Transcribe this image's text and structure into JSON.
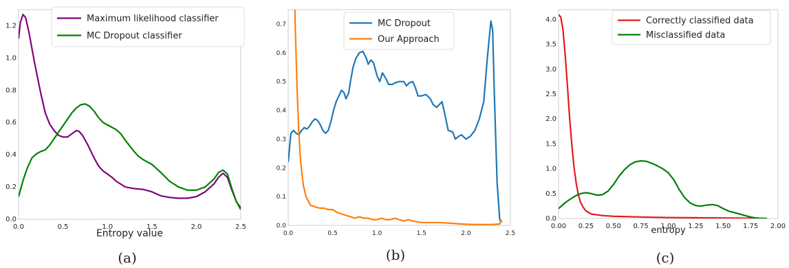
{
  "chart_data": [
    {
      "type": "line",
      "caption": "(a)",
      "xlabel": "Entropy value",
      "ylabel": "",
      "xlim": [
        0,
        2.5
      ],
      "ylim": [
        0,
        1.3
      ],
      "xticks": [
        "0.0",
        "0.5",
        "1.0",
        "1.5",
        "2.0",
        "2.5"
      ],
      "yticks": [
        "0.0",
        "0.2",
        "0.4",
        "0.6",
        "0.8",
        "1.0",
        "1.2"
      ],
      "legend_position": "top-right",
      "grid": false,
      "series": [
        {
          "name": "Maximum likelihood classifier",
          "color": "#800080",
          "points": [
            [
              0,
              1.12
            ],
            [
              0.02,
              1.22
            ],
            [
              0.05,
              1.27
            ],
            [
              0.08,
              1.25
            ],
            [
              0.12,
              1.15
            ],
            [
              0.18,
              0.97
            ],
            [
              0.25,
              0.78
            ],
            [
              0.3,
              0.66
            ],
            [
              0.35,
              0.59
            ],
            [
              0.4,
              0.55
            ],
            [
              0.45,
              0.52
            ],
            [
              0.5,
              0.51
            ],
            [
              0.55,
              0.51
            ],
            [
              0.6,
              0.53
            ],
            [
              0.65,
              0.55
            ],
            [
              0.68,
              0.545
            ],
            [
              0.72,
              0.52
            ],
            [
              0.78,
              0.46
            ],
            [
              0.85,
              0.38
            ],
            [
              0.9,
              0.33
            ],
            [
              0.95,
              0.3
            ],
            [
              1.0,
              0.28
            ],
            [
              1.05,
              0.26
            ],
            [
              1.1,
              0.235
            ],
            [
              1.2,
              0.2
            ],
            [
              1.3,
              0.19
            ],
            [
              1.4,
              0.185
            ],
            [
              1.5,
              0.17
            ],
            [
              1.6,
              0.145
            ],
            [
              1.7,
              0.135
            ],
            [
              1.8,
              0.13
            ],
            [
              1.9,
              0.13
            ],
            [
              2.0,
              0.14
            ],
            [
              2.1,
              0.17
            ],
            [
              2.2,
              0.22
            ],
            [
              2.25,
              0.26
            ],
            [
              2.3,
              0.285
            ],
            [
              2.35,
              0.26
            ],
            [
              2.4,
              0.18
            ],
            [
              2.45,
              0.11
            ],
            [
              2.5,
              0.07
            ]
          ]
        },
        {
          "name": "MC Dropout classifier",
          "color": "#008000",
          "points": [
            [
              0,
              0.14
            ],
            [
              0.05,
              0.24
            ],
            [
              0.1,
              0.32
            ],
            [
              0.15,
              0.38
            ],
            [
              0.2,
              0.405
            ],
            [
              0.25,
              0.42
            ],
            [
              0.3,
              0.43
            ],
            [
              0.35,
              0.46
            ],
            [
              0.4,
              0.5
            ],
            [
              0.45,
              0.54
            ],
            [
              0.5,
              0.58
            ],
            [
              0.55,
              0.62
            ],
            [
              0.6,
              0.66
            ],
            [
              0.65,
              0.69
            ],
            [
              0.7,
              0.71
            ],
            [
              0.75,
              0.715
            ],
            [
              0.8,
              0.7
            ],
            [
              0.85,
              0.67
            ],
            [
              0.9,
              0.63
            ],
            [
              0.95,
              0.6
            ],
            [
              1.0,
              0.585
            ],
            [
              1.05,
              0.57
            ],
            [
              1.1,
              0.555
            ],
            [
              1.15,
              0.53
            ],
            [
              1.2,
              0.49
            ],
            [
              1.3,
              0.42
            ],
            [
              1.35,
              0.39
            ],
            [
              1.4,
              0.37
            ],
            [
              1.5,
              0.34
            ],
            [
              1.6,
              0.29
            ],
            [
              1.7,
              0.235
            ],
            [
              1.8,
              0.2
            ],
            [
              1.9,
              0.18
            ],
            [
              2.0,
              0.18
            ],
            [
              2.1,
              0.2
            ],
            [
              2.2,
              0.25
            ],
            [
              2.25,
              0.29
            ],
            [
              2.3,
              0.305
            ],
            [
              2.35,
              0.28
            ],
            [
              2.4,
              0.19
            ],
            [
              2.45,
              0.11
            ],
            [
              2.5,
              0.06
            ]
          ]
        }
      ]
    },
    {
      "type": "line",
      "caption": "(b)",
      "xlabel": "",
      "ylabel": "",
      "xlim": [
        0,
        2.5
      ],
      "ylim": [
        0,
        0.75
      ],
      "xticks": [
        "0.0",
        "0.5",
        "1.0",
        "1.5",
        "2.0",
        "2.5"
      ],
      "yticks": [
        "0.0",
        "0.1",
        "0.2",
        "0.3",
        "0.4",
        "0.5",
        "0.6",
        "0.7"
      ],
      "legend_position": "top-center",
      "grid": false,
      "series": [
        {
          "name": "MC Dropout",
          "color": "#1f77b4",
          "points": [
            [
              0,
              0.22
            ],
            [
              0.03,
              0.32
            ],
            [
              0.06,
              0.33
            ],
            [
              0.09,
              0.32
            ],
            [
              0.12,
              0.315
            ],
            [
              0.15,
              0.33
            ],
            [
              0.18,
              0.34
            ],
            [
              0.21,
              0.335
            ],
            [
              0.24,
              0.345
            ],
            [
              0.27,
              0.36
            ],
            [
              0.3,
              0.37
            ],
            [
              0.33,
              0.365
            ],
            [
              0.36,
              0.35
            ],
            [
              0.39,
              0.33
            ],
            [
              0.42,
              0.32
            ],
            [
              0.45,
              0.33
            ],
            [
              0.48,
              0.36
            ],
            [
              0.51,
              0.4
            ],
            [
              0.54,
              0.43
            ],
            [
              0.57,
              0.45
            ],
            [
              0.6,
              0.47
            ],
            [
              0.63,
              0.46
            ],
            [
              0.65,
              0.44
            ],
            [
              0.68,
              0.46
            ],
            [
              0.7,
              0.5
            ],
            [
              0.73,
              0.55
            ],
            [
              0.76,
              0.58
            ],
            [
              0.8,
              0.6
            ],
            [
              0.84,
              0.605
            ],
            [
              0.88,
              0.58
            ],
            [
              0.9,
              0.56
            ],
            [
              0.93,
              0.575
            ],
            [
              0.96,
              0.565
            ],
            [
              1.0,
              0.52
            ],
            [
              1.03,
              0.5
            ],
            [
              1.06,
              0.53
            ],
            [
              1.1,
              0.51
            ],
            [
              1.13,
              0.49
            ],
            [
              1.17,
              0.49
            ],
            [
              1.2,
              0.495
            ],
            [
              1.25,
              0.5
            ],
            [
              1.3,
              0.5
            ],
            [
              1.33,
              0.485
            ],
            [
              1.36,
              0.495
            ],
            [
              1.4,
              0.5
            ],
            [
              1.43,
              0.48
            ],
            [
              1.46,
              0.45
            ],
            [
              1.5,
              0.45
            ],
            [
              1.55,
              0.455
            ],
            [
              1.6,
              0.44
            ],
            [
              1.63,
              0.42
            ],
            [
              1.67,
              0.41
            ],
            [
              1.7,
              0.42
            ],
            [
              1.73,
              0.43
            ],
            [
              1.76,
              0.39
            ],
            [
              1.8,
              0.33
            ],
            [
              1.85,
              0.325
            ],
            [
              1.88,
              0.3
            ],
            [
              1.92,
              0.31
            ],
            [
              1.95,
              0.315
            ],
            [
              2.0,
              0.3
            ],
            [
              2.05,
              0.31
            ],
            [
              2.1,
              0.33
            ],
            [
              2.15,
              0.37
            ],
            [
              2.2,
              0.43
            ],
            [
              2.24,
              0.58
            ],
            [
              2.28,
              0.71
            ],
            [
              2.3,
              0.68
            ],
            [
              2.32,
              0.45
            ],
            [
              2.35,
              0.15
            ],
            [
              2.38,
              0.02
            ],
            [
              2.4,
              0.01
            ]
          ]
        },
        {
          "name": "Our Approach",
          "color": "#ff7f0e",
          "points": [
            [
              0.075,
              0.75
            ],
            [
              0.08,
              0.68
            ],
            [
              0.09,
              0.58
            ],
            [
              0.1,
              0.47
            ],
            [
              0.12,
              0.32
            ],
            [
              0.14,
              0.22
            ],
            [
              0.17,
              0.14
            ],
            [
              0.2,
              0.1
            ],
            [
              0.25,
              0.07
            ],
            [
              0.3,
              0.065
            ],
            [
              0.35,
              0.06
            ],
            [
              0.4,
              0.06
            ],
            [
              0.45,
              0.055
            ],
            [
              0.5,
              0.055
            ],
            [
              0.55,
              0.045
            ],
            [
              0.6,
              0.04
            ],
            [
              0.65,
              0.035
            ],
            [
              0.7,
              0.03
            ],
            [
              0.75,
              0.025
            ],
            [
              0.8,
              0.03
            ],
            [
              0.85,
              0.025
            ],
            [
              0.9,
              0.025
            ],
            [
              0.95,
              0.02
            ],
            [
              1.0,
              0.02
            ],
            [
              1.05,
              0.025
            ],
            [
              1.1,
              0.02
            ],
            [
              1.15,
              0.02
            ],
            [
              1.2,
              0.025
            ],
            [
              1.25,
              0.02
            ],
            [
              1.3,
              0.015
            ],
            [
              1.35,
              0.02
            ],
            [
              1.4,
              0.015
            ],
            [
              1.5,
              0.01
            ],
            [
              1.6,
              0.01
            ],
            [
              1.7,
              0.01
            ],
            [
              1.8,
              0.008
            ],
            [
              1.9,
              0.006
            ],
            [
              2.0,
              0.004
            ],
            [
              2.1,
              0.003
            ],
            [
              2.2,
              0.003
            ],
            [
              2.3,
              0.003
            ],
            [
              2.38,
              0.005
            ],
            [
              2.4,
              0.02
            ]
          ]
        }
      ]
    },
    {
      "type": "line",
      "caption": "(c)",
      "xlabel": "entropy",
      "ylabel": "",
      "xlim": [
        0,
        2.0
      ],
      "ylim": [
        0,
        4.2
      ],
      "xticks": [
        "0.00",
        "0.25",
        "0.50",
        "0.75",
        "1.00",
        "1.25",
        "1.50",
        "1.75",
        "2.00"
      ],
      "yticks": [
        "0.0",
        "0.5",
        "1.0",
        "1.5",
        "2.0",
        "2.5",
        "3.0",
        "3.5",
        "4.0"
      ],
      "legend_position": "top-right",
      "grid": false,
      "series": [
        {
          "name": "Correctly classified data",
          "color": "#e31a1c",
          "points": [
            [
              0,
              4.1
            ],
            [
              0.02,
              4.05
            ],
            [
              0.04,
              3.8
            ],
            [
              0.06,
              3.3
            ],
            [
              0.08,
              2.7
            ],
            [
              0.1,
              2.05
            ],
            [
              0.12,
              1.5
            ],
            [
              0.14,
              1.05
            ],
            [
              0.16,
              0.72
            ],
            [
              0.18,
              0.48
            ],
            [
              0.2,
              0.33
            ],
            [
              0.22,
              0.24
            ],
            [
              0.25,
              0.15
            ],
            [
              0.3,
              0.09
            ],
            [
              0.4,
              0.06
            ],
            [
              0.5,
              0.045
            ],
            [
              0.75,
              0.03
            ],
            [
              1.0,
              0.02
            ],
            [
              1.25,
              0.015
            ],
            [
              1.5,
              0.01
            ],
            [
              1.75,
              0.005
            ],
            [
              1.9,
              0.002
            ]
          ]
        },
        {
          "name": "Misclassified data",
          "color": "#008000",
          "points": [
            [
              0,
              0.2
            ],
            [
              0.05,
              0.3
            ],
            [
              0.1,
              0.38
            ],
            [
              0.15,
              0.45
            ],
            [
              0.2,
              0.5
            ],
            [
              0.25,
              0.52
            ],
            [
              0.3,
              0.5
            ],
            [
              0.35,
              0.47
            ],
            [
              0.4,
              0.48
            ],
            [
              0.45,
              0.55
            ],
            [
              0.5,
              0.68
            ],
            [
              0.55,
              0.85
            ],
            [
              0.6,
              0.98
            ],
            [
              0.65,
              1.08
            ],
            [
              0.7,
              1.14
            ],
            [
              0.75,
              1.16
            ],
            [
              0.8,
              1.15
            ],
            [
              0.85,
              1.11
            ],
            [
              0.9,
              1.06
            ],
            [
              0.95,
              1.0
            ],
            [
              1.0,
              0.92
            ],
            [
              1.05,
              0.78
            ],
            [
              1.1,
              0.58
            ],
            [
              1.15,
              0.42
            ],
            [
              1.2,
              0.31
            ],
            [
              1.25,
              0.26
            ],
            [
              1.3,
              0.25
            ],
            [
              1.35,
              0.27
            ],
            [
              1.4,
              0.28
            ],
            [
              1.45,
              0.26
            ],
            [
              1.5,
              0.2
            ],
            [
              1.55,
              0.15
            ],
            [
              1.6,
              0.12
            ],
            [
              1.65,
              0.09
            ],
            [
              1.7,
              0.06
            ],
            [
              1.75,
              0.03
            ],
            [
              1.8,
              0.01
            ],
            [
              1.85,
              0.002
            ],
            [
              1.9,
              0.0
            ]
          ]
        }
      ]
    }
  ]
}
